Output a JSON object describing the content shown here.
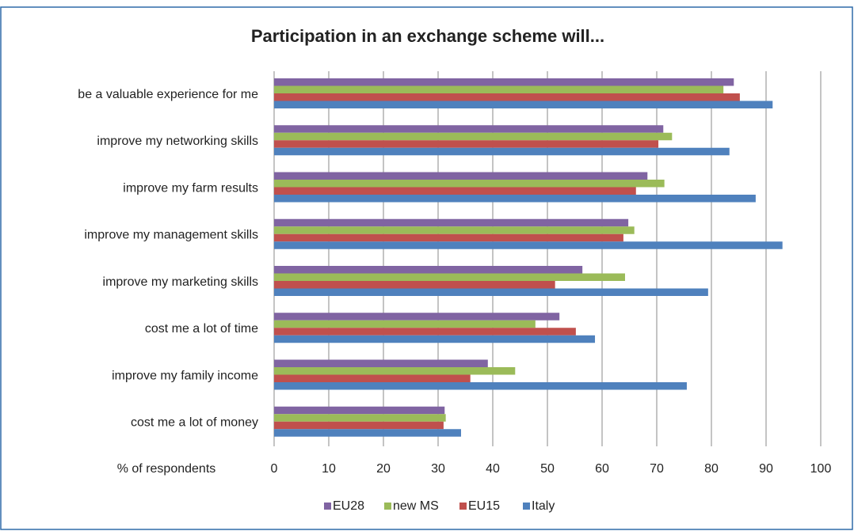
{
  "chart_data": {
    "type": "hbar",
    "title": "Participation in an exchange scheme will...",
    "x_label": "% of respondents",
    "categories": [
      "be a valuable experience for me",
      "improve my networking skills",
      "improve my farm results",
      "improve my management skills",
      "improve my marketing skills",
      "cost me a lot of time",
      "improve my family income",
      "cost me a lot of money"
    ],
    "series": [
      {
        "name": "EU28",
        "color": "#8064a2",
        "values": [
          84.1,
          71.2,
          68.3,
          64.8,
          56.4,
          52.2,
          39.1,
          31.2
        ]
      },
      {
        "name": "new MS",
        "color": "#9bbb59",
        "values": [
          82.2,
          72.8,
          71.4,
          65.9,
          64.2,
          47.8,
          44.1,
          31.4
        ]
      },
      {
        "name": "EU15",
        "color": "#c0504d",
        "values": [
          85.2,
          70.3,
          66.2,
          63.9,
          51.4,
          55.2,
          35.9,
          31.0
        ]
      },
      {
        "name": "Italy",
        "color": "#4f81bd",
        "values": [
          91.2,
          83.3,
          88.1,
          93.0,
          79.4,
          58.7,
          75.5,
          34.2
        ]
      }
    ],
    "xlim": [
      0,
      100
    ],
    "xticks": [
      0,
      10,
      20,
      30,
      40,
      50,
      60,
      70,
      80,
      90,
      100
    ],
    "grid": true,
    "legend": "bottom"
  }
}
